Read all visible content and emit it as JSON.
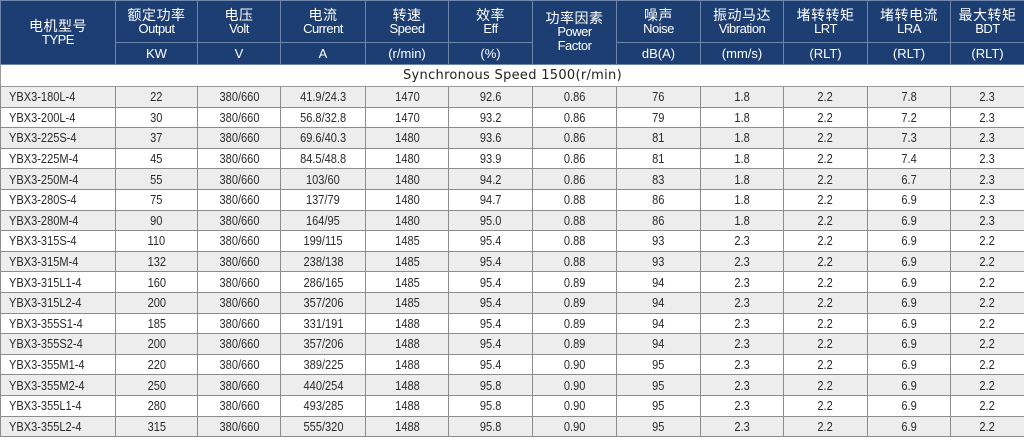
{
  "header": {
    "columns": [
      {
        "cn": "电机型号",
        "en": "TYPE",
        "unit": ""
      },
      {
        "cn": "额定功率",
        "en": "Output",
        "unit": "KW"
      },
      {
        "cn": "电压",
        "en": "Volt",
        "unit": "V"
      },
      {
        "cn": "电流",
        "en": "Current",
        "unit": "A"
      },
      {
        "cn": "转速",
        "en": "Speed",
        "unit": "(r/min)"
      },
      {
        "cn": "效率",
        "en": "Eff",
        "unit": "(%)"
      },
      {
        "cn": "功率因素",
        "en": "Power Factor",
        "unit": ""
      },
      {
        "cn": "噪声",
        "en": "Noise",
        "unit": "dB(A)"
      },
      {
        "cn": "振动马达",
        "en": "Vibration",
        "unit": "(mm/s)"
      },
      {
        "cn": "堵转转矩",
        "en": "LRT",
        "unit": "(RLT)"
      },
      {
        "cn": "堵转电流",
        "en": "LRA",
        "unit": "(RLT)"
      },
      {
        "cn": "最大转矩",
        "en": "BDT",
        "unit": "(RLT)"
      }
    ]
  },
  "section_title": "Synchronous Speed 1500(r/min)",
  "header_color": "#1d3e72",
  "rows": [
    [
      "YBX3-180L-4",
      "22",
      "380/660",
      "41.9/24.3",
      "1470",
      "92.6",
      "0.86",
      "76",
      "1.8",
      "2.2",
      "7.8",
      "2.3"
    ],
    [
      "YBX3-200L-4",
      "30",
      "380/660",
      "56.8/32.8",
      "1470",
      "93.2",
      "0.86",
      "79",
      "1.8",
      "2.2",
      "7.2",
      "2.3"
    ],
    [
      "YBX3-225S-4",
      "37",
      "380/660",
      "69.6/40.3",
      "1480",
      "93.6",
      "0.86",
      "81",
      "1.8",
      "2.2",
      "7.3",
      "2.3"
    ],
    [
      "YBX3-225M-4",
      "45",
      "380/660",
      "84.5/48.8",
      "1480",
      "93.9",
      "0.86",
      "81",
      "1.8",
      "2.2",
      "7.4",
      "2.3"
    ],
    [
      "YBX3-250M-4",
      "55",
      "380/660",
      "103/60",
      "1480",
      "94.2",
      "0.86",
      "83",
      "1.8",
      "2.2",
      "6.7",
      "2.3"
    ],
    [
      "YBX3-280S-4",
      "75",
      "380/660",
      "137/79",
      "1480",
      "94.7",
      "0.88",
      "86",
      "1.8",
      "2.2",
      "6.9",
      "2.3"
    ],
    [
      "YBX3-280M-4",
      "90",
      "380/660",
      "164/95",
      "1480",
      "95.0",
      "0.88",
      "86",
      "1.8",
      "2.2",
      "6.9",
      "2.3"
    ],
    [
      "YBX3-315S-4",
      "110",
      "380/660",
      "199/115",
      "1485",
      "95.4",
      "0.88",
      "93",
      "2.3",
      "2.2",
      "6.9",
      "2.2"
    ],
    [
      "YBX3-315M-4",
      "132",
      "380/660",
      "238/138",
      "1485",
      "95.4",
      "0.88",
      "93",
      "2.3",
      "2.2",
      "6.9",
      "2.2"
    ],
    [
      "YBX3-315L1-4",
      "160",
      "380/660",
      "286/165",
      "1485",
      "95.4",
      "0.89",
      "94",
      "2.3",
      "2.2",
      "6.9",
      "2.2"
    ],
    [
      "YBX3-315L2-4",
      "200",
      "380/660",
      "357/206",
      "1485",
      "95.4",
      "0.89",
      "94",
      "2.3",
      "2.2",
      "6.9",
      "2.2"
    ],
    [
      "YBX3-355S1-4",
      "185",
      "380/660",
      "331/191",
      "1488",
      "95.4",
      "0.89",
      "94",
      "2.3",
      "2.2",
      "6.9",
      "2.2"
    ],
    [
      "YBX3-355S2-4",
      "200",
      "380/660",
      "357/206",
      "1488",
      "95.4",
      "0.89",
      "94",
      "2.3",
      "2.2",
      "6.9",
      "2.2"
    ],
    [
      "YBX3-355M1-4",
      "220",
      "380/660",
      "389/225",
      "1488",
      "95.4",
      "0.90",
      "95",
      "2.3",
      "2.2",
      "6.9",
      "2.2"
    ],
    [
      "YBX3-355M2-4",
      "250",
      "380/660",
      "440/254",
      "1488",
      "95.8",
      "0.90",
      "95",
      "2.3",
      "2.2",
      "6.9",
      "2.2"
    ],
    [
      "YBX3-355L1-4",
      "280",
      "380/660",
      "493/285",
      "1488",
      "95.8",
      "0.90",
      "95",
      "2.3",
      "2.2",
      "6.9",
      "2.2"
    ],
    [
      "YBX3-355L2-4",
      "315",
      "380/660",
      "555/320",
      "1488",
      "95.8",
      "0.90",
      "95",
      "2.3",
      "2.2",
      "6.9",
      "2.2"
    ]
  ]
}
